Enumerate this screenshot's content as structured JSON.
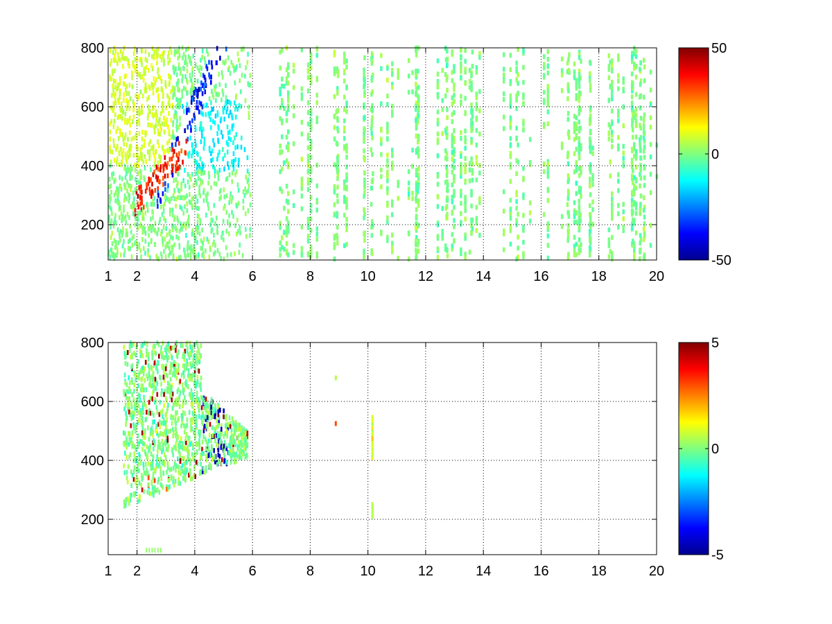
{
  "figure": {
    "background": "#ffffff",
    "colormap": "jet"
  },
  "chart_data": [
    {
      "type": "heatmap",
      "title": "",
      "xlabel": "",
      "ylabel": "",
      "xlim": [
        1,
        20
      ],
      "ylim": [
        80,
        800
      ],
      "xticks": [
        1,
        2,
        4,
        6,
        8,
        10,
        12,
        14,
        16,
        18,
        20
      ],
      "yticks": [
        200,
        400,
        600,
        800
      ],
      "grid": true,
      "colorbar": {
        "min": -50,
        "max": 50,
        "ticks": [
          50,
          0,
          -50
        ],
        "tick_labels": [
          "50",
          "0",
          "-50"
        ]
      },
      "value_range": [
        -50,
        50
      ],
      "features": [
        {
          "desc": "positive ridge",
          "x": [
            2.0,
            2.7,
            3.2,
            3.6
          ],
          "y": [
            280,
            340,
            400,
            440
          ],
          "value": 35
        },
        {
          "desc": "negative ridge",
          "x": [
            2.7,
            3.3,
            3.8,
            4.0,
            4.2
          ],
          "y": [
            300,
            350,
            420,
            500,
            600
          ],
          "value": -40
        }
      ]
    },
    {
      "type": "heatmap",
      "title": "",
      "xlabel": "",
      "ylabel": "",
      "xlim": [
        1,
        20
      ],
      "ylim": [
        80,
        800
      ],
      "xticks": [
        1,
        2,
        4,
        6,
        8,
        10,
        12,
        14,
        16,
        18,
        20
      ],
      "yticks": [
        200,
        400,
        600,
        800
      ],
      "grid": true,
      "colorbar": {
        "min": -5,
        "max": 5,
        "ticks": [
          5,
          0,
          -5
        ],
        "tick_labels": [
          "5",
          "0",
          "-5"
        ]
      },
      "value_range": [
        -5,
        5
      ],
      "features": [
        {
          "desc": "main cloud",
          "x_range": [
            1.5,
            5.8
          ],
          "y_range": [
            230,
            800
          ]
        },
        {
          "desc": "isolated point",
          "x": 8.85,
          "y": 525,
          "value": 3
        },
        {
          "desc": "vertical streak",
          "x": 10.1,
          "y_range": [
            410,
            550
          ]
        }
      ]
    }
  ]
}
